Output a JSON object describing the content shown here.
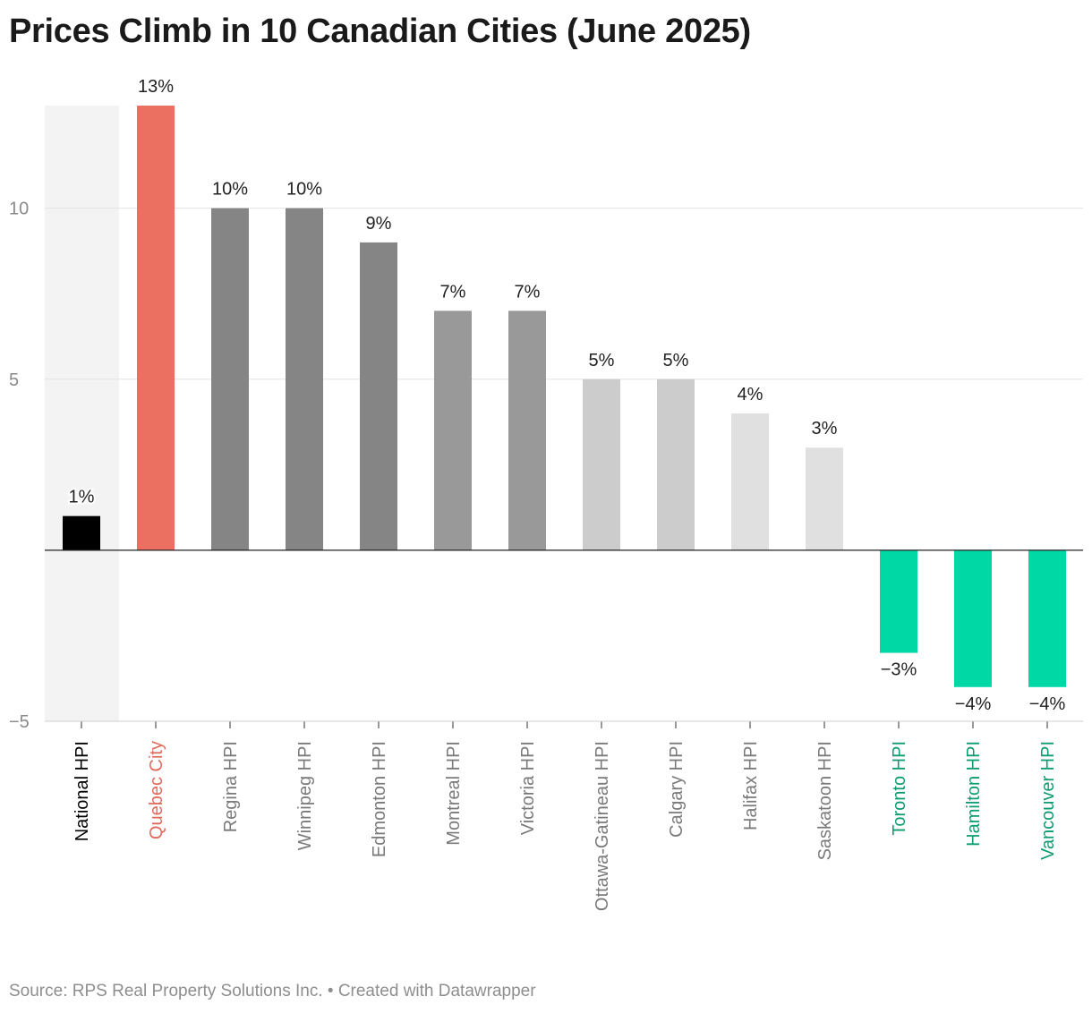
{
  "title": "Prices Climb in 10 Canadian Cities (June 2025)",
  "source": "Source: RPS Real Property Solutions Inc. • Created with Datawrapper",
  "chart_data": {
    "type": "bar",
    "title": "Prices Climb in 10 Canadian Cities (June 2025)",
    "xlabel": "",
    "ylabel": "",
    "ylim": [
      -5,
      13
    ],
    "yticks": [
      -5,
      5,
      10
    ],
    "ytick_labels": [
      "−5",
      "5",
      "10"
    ],
    "grid": true,
    "highlighted_category": "National HPI",
    "categories": [
      "National HPI",
      "Quebec City",
      "Regina HPI",
      "Winnipeg HPI",
      "Edmonton HPI",
      "Montreal HPI",
      "Victoria HPI",
      "Ottawa-Gatineau HPI",
      "Calgary HPI",
      "Halifax HPI",
      "Saskatoon HPI",
      "Toronto HPI",
      "Hamilton HPI",
      "Vancouver HPI"
    ],
    "values": [
      1,
      13,
      10,
      10,
      9,
      7,
      7,
      5,
      5,
      4,
      3,
      -3,
      -4,
      -4
    ],
    "value_labels": [
      "1%",
      "13%",
      "10%",
      "10%",
      "9%",
      "7%",
      "7%",
      "5%",
      "5%",
      "4%",
      "3%",
      "−3%",
      "−4%",
      "−4%"
    ],
    "bar_colors": [
      "#000000",
      "#eb7062",
      "#858585",
      "#858585",
      "#858585",
      "#999999",
      "#999999",
      "#cccccc",
      "#cccccc",
      "#e0e0e0",
      "#e0e0e0",
      "#00d9a6",
      "#00d9a6",
      "#00d9a6"
    ],
    "label_colors": [
      "#000000",
      "#e0695c",
      "#7a7a7a",
      "#7a7a7a",
      "#7a7a7a",
      "#7a7a7a",
      "#7a7a7a",
      "#7a7a7a",
      "#7a7a7a",
      "#7a7a7a",
      "#7a7a7a",
      "#0d9b72",
      "#0d9b72",
      "#0d9b72"
    ]
  }
}
